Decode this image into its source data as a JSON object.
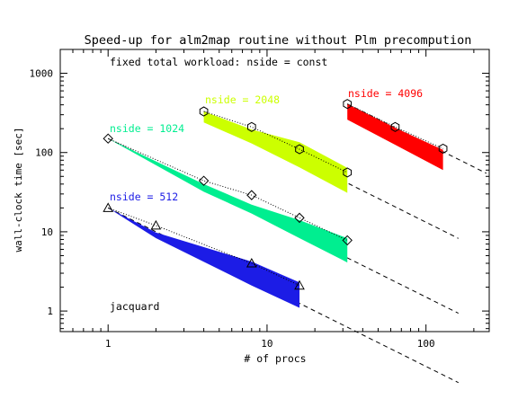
{
  "chart_data": {
    "type": "line",
    "title": "Speed-up for alm2map routine without Plm precompution",
    "xlabel": "# of procs",
    "ylabel": "wall-clock time [sec]",
    "xscale": "log",
    "yscale": "log",
    "xlim": [
      0.5,
      250
    ],
    "ylim": [
      0.55,
      2000
    ],
    "xticks": [
      1,
      10,
      100
    ],
    "xtick_labels": [
      "1",
      "10",
      "100"
    ],
    "yticks": [
      1,
      10,
      100,
      1000
    ],
    "ytick_labels": [
      "1",
      "10",
      "100",
      "1000"
    ],
    "annotations": [
      "fixed total workload: nside = const",
      "jacquard"
    ],
    "grid": false,
    "series": [
      {
        "name": "nside = 512",
        "color": "#1c1ce6",
        "marker": "triangle",
        "procs": [
          1,
          2,
          8,
          16
        ],
        "time": [
          20,
          12,
          4.0,
          2.1
        ],
        "band_upper": [
          20,
          9.8,
          4.2,
          2.3
        ],
        "band_lower": [
          20,
          8.3,
          2.1,
          1.1
        ],
        "ideal_x_end": 160
      },
      {
        "name": "nside = 1024",
        "color": "#00ee90",
        "marker": "diamond",
        "procs": [
          1,
          4,
          8,
          16,
          32
        ],
        "time": [
          150,
          44,
          29,
          15,
          7.8
        ],
        "band_upper": [
          150,
          40,
          22,
          14,
          8.3
        ],
        "band_lower": [
          150,
          32,
          17,
          8.3,
          4.1
        ],
        "ideal_x_end": 160
      },
      {
        "name": "nside = 2048",
        "color": "#ccff00",
        "marker": "hexagon",
        "procs": [
          4,
          8,
          16,
          32
        ],
        "time": [
          330,
          210,
          110,
          56
        ],
        "band_upper": [
          330,
          195,
          135,
          64
        ],
        "band_lower": [
          240,
          130,
          65,
          31
        ],
        "ideal_x_end": 160
      },
      {
        "name": "nside = 4096",
        "color": "#ff0000",
        "marker": "hexagon",
        "procs": [
          32,
          64,
          128
        ],
        "time": [
          410,
          210,
          112
        ],
        "band_upper": [
          410,
          205,
          108
        ],
        "band_lower": [
          260,
          125,
          60
        ],
        "ideal_x_end": 240
      }
    ]
  }
}
